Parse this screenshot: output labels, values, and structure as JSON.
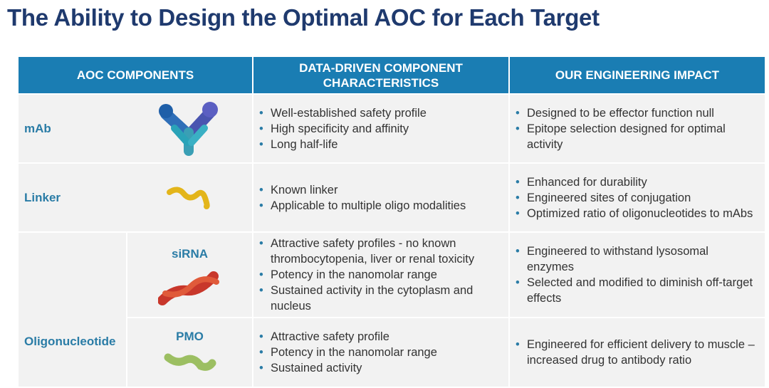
{
  "title": "The Ability to Design the Optimal AOC for Each Target",
  "table": {
    "headers": [
      "AOC COMPONENTS",
      "DATA-DRIVEN COMPONENT CHARACTERISTICS",
      "OUR ENGINEERING IMPACT"
    ],
    "rows": [
      {
        "component": "mAb",
        "characteristics": [
          "Well-established safety profile",
          "High specificity and affinity",
          "Long half-life"
        ],
        "impact": [
          "Designed to be effector function null",
          "Epitope selection designed for optimal activity"
        ]
      },
      {
        "component": "Linker",
        "characteristics": [
          "Known linker",
          "Applicable to multiple oligo modalities"
        ],
        "impact": [
          "Enhanced for durability",
          "Engineered sites of conjugation",
          "Optimized ratio of oligonucleotides to mAbs"
        ]
      }
    ],
    "group": {
      "label": "Oligonucleotide",
      "rows": [
        {
          "component": "siRNA",
          "characteristics": [
            "Attractive safety profiles - no known thrombocytopenia, liver or renal toxicity",
            "Potency in the nanomolar range",
            "Sustained activity in the cytoplasm and nucleus"
          ],
          "impact": [
            "Engineered to withstand lysosomal enzymes",
            "Selected and modified to diminish off-target effects"
          ]
        },
        {
          "component": "PMO",
          "characteristics": [
            "Attractive safety profile",
            "Potency in the nanomolar range",
            "Sustained activity"
          ],
          "impact": [
            "Engineered for efficient delivery to muscle – increased drug to antibody ratio"
          ]
        }
      ]
    }
  }
}
